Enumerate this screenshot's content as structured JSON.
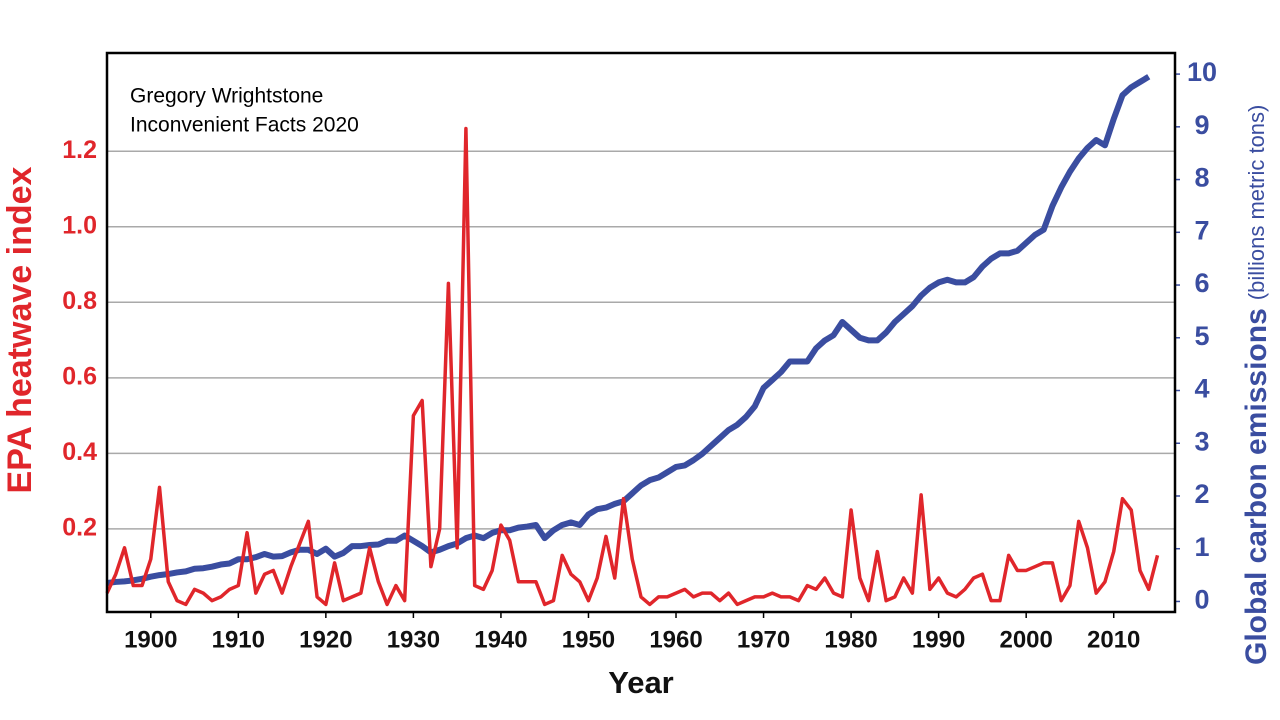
{
  "chart_data": {
    "type": "line",
    "annotations": [
      "Gregory Wrightstone",
      "Inconvenient Facts 2020"
    ],
    "xlabel": "Year",
    "ylabel": "EPA heatwave index",
    "y2label": [
      "Global carbon emissions",
      "(billions metric tons)"
    ],
    "x": [
      1895,
      1896,
      1897,
      1898,
      1899,
      1900,
      1901,
      1902,
      1903,
      1904,
      1905,
      1906,
      1907,
      1908,
      1909,
      1910,
      1911,
      1912,
      1913,
      1914,
      1915,
      1916,
      1917,
      1918,
      1919,
      1920,
      1921,
      1922,
      1923,
      1924,
      1925,
      1926,
      1927,
      1928,
      1929,
      1930,
      1931,
      1932,
      1933,
      1934,
      1935,
      1936,
      1937,
      1938,
      1939,
      1940,
      1941,
      1942,
      1943,
      1944,
      1945,
      1946,
      1947,
      1948,
      1949,
      1950,
      1951,
      1952,
      1953,
      1954,
      1955,
      1956,
      1957,
      1958,
      1959,
      1960,
      1961,
      1962,
      1963,
      1964,
      1965,
      1966,
      1967,
      1968,
      1969,
      1970,
      1971,
      1972,
      1973,
      1974,
      1975,
      1976,
      1977,
      1978,
      1979,
      1980,
      1981,
      1982,
      1983,
      1984,
      1985,
      1986,
      1987,
      1988,
      1989,
      1990,
      1991,
      1992,
      1993,
      1994,
      1995,
      1996,
      1997,
      1998,
      1999,
      2000,
      2001,
      2002,
      2003,
      2004,
      2005,
      2006,
      2007,
      2008,
      2009,
      2010,
      2011,
      2012,
      2013,
      2014,
      2015
    ],
    "series": [
      {
        "name": "EPA heatwave index",
        "color": "#e0262b",
        "axis": "y",
        "values": [
          0.03,
          0.08,
          0.15,
          0.05,
          0.05,
          0.12,
          0.31,
          0.06,
          0.01,
          0.0,
          0.04,
          0.03,
          0.01,
          0.02,
          0.04,
          0.05,
          0.19,
          0.03,
          0.08,
          0.09,
          0.03,
          0.1,
          0.16,
          0.22,
          0.02,
          0.0,
          0.11,
          0.01,
          0.02,
          0.03,
          0.15,
          0.06,
          0.0,
          0.05,
          0.01,
          0.5,
          0.54,
          0.1,
          0.2,
          0.85,
          0.15,
          1.26,
          0.05,
          0.04,
          0.09,
          0.21,
          0.17,
          0.06,
          0.06,
          0.06,
          0.0,
          0.01,
          0.13,
          0.08,
          0.06,
          0.01,
          0.07,
          0.18,
          0.07,
          0.28,
          0.12,
          0.02,
          0.0,
          0.02,
          0.02,
          0.03,
          0.04,
          0.02,
          0.03,
          0.03,
          0.01,
          0.03,
          0.0,
          0.01,
          0.02,
          0.02,
          0.03,
          0.02,
          0.02,
          0.01,
          0.05,
          0.04,
          0.07,
          0.03,
          0.02,
          0.25,
          0.07,
          0.01,
          0.14,
          0.01,
          0.02,
          0.07,
          0.03,
          0.29,
          0.04,
          0.07,
          0.03,
          0.02,
          0.04,
          0.07,
          0.08,
          0.01,
          0.01,
          0.13,
          0.09,
          0.09,
          0.1,
          0.11,
          0.11,
          0.01,
          0.05,
          0.22,
          0.15,
          0.03,
          0.06,
          0.14,
          0.28,
          0.25,
          0.09,
          0.04,
          0.13
        ]
      },
      {
        "name": "Global carbon emissions",
        "color": "#3a4da0",
        "axis": "y2",
        "values": [
          0.35,
          0.37,
          0.38,
          0.4,
          0.43,
          0.47,
          0.5,
          0.52,
          0.55,
          0.57,
          0.62,
          0.63,
          0.66,
          0.7,
          0.72,
          0.8,
          0.8,
          0.84,
          0.9,
          0.85,
          0.86,
          0.93,
          0.98,
          0.98,
          0.9,
          1.0,
          0.85,
          0.92,
          1.05,
          1.05,
          1.07,
          1.08,
          1.15,
          1.15,
          1.25,
          1.15,
          1.05,
          0.93,
          0.98,
          1.05,
          1.1,
          1.2,
          1.25,
          1.2,
          1.3,
          1.35,
          1.35,
          1.4,
          1.42,
          1.45,
          1.2,
          1.35,
          1.45,
          1.5,
          1.45,
          1.65,
          1.75,
          1.78,
          1.85,
          1.9,
          2.05,
          2.2,
          2.3,
          2.35,
          2.45,
          2.55,
          2.58,
          2.68,
          2.8,
          2.95,
          3.1,
          3.25,
          3.35,
          3.5,
          3.7,
          4.05,
          4.2,
          4.35,
          4.55,
          4.55,
          4.55,
          4.8,
          4.95,
          5.05,
          5.3,
          5.15,
          5.0,
          4.95,
          4.95,
          5.1,
          5.3,
          5.45,
          5.6,
          5.8,
          5.95,
          6.05,
          6.1,
          6.05,
          6.05,
          6.15,
          6.35,
          6.5,
          6.6,
          6.6,
          6.65,
          6.8,
          6.95,
          7.05,
          7.5,
          7.85,
          8.15,
          8.4,
          8.6,
          8.75,
          8.65,
          9.15,
          9.6,
          9.75,
          9.85,
          9.95,
          null
        ]
      }
    ],
    "xlim": [
      1895,
      2017
    ],
    "xticks": [
      1900,
      1910,
      1920,
      1930,
      1940,
      1950,
      1960,
      1970,
      1980,
      1990,
      2000,
      2010
    ],
    "ylim": [
      -0.02,
      1.46
    ],
    "yticks": [
      0.2,
      0.4,
      0.6,
      0.8,
      {
        "value": 1,
        "label": "1.0"
      },
      1.2
    ],
    "y2lim": [
      -0.2,
      10.4
    ],
    "y2ticks": [
      0,
      1,
      2,
      3,
      4,
      5,
      6,
      7,
      8,
      9,
      10
    ],
    "grid": true
  }
}
